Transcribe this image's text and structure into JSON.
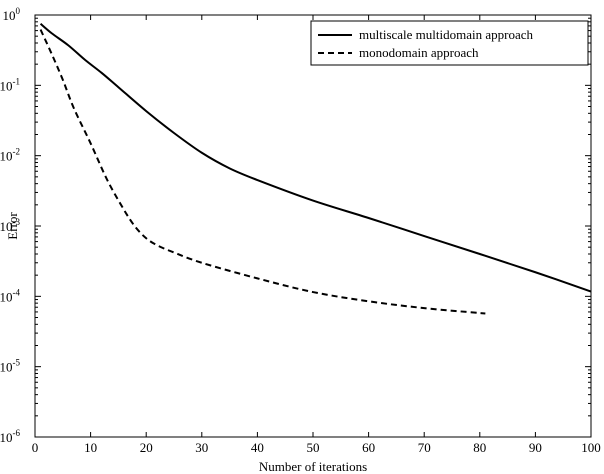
{
  "chart_data": {
    "type": "line",
    "title": "",
    "xlabel": "Number of iterations",
    "ylabel": "Error",
    "xlim": [
      0,
      100
    ],
    "ylim": [
      1e-06,
      1
    ],
    "y_scale": "log",
    "grid": false,
    "legend_position": "top-right",
    "x_ticks": [
      0,
      10,
      20,
      30,
      40,
      50,
      60,
      70,
      80,
      90,
      100
    ],
    "x_tick_labels": [
      "0",
      "10",
      "20",
      "30",
      "40",
      "50",
      "60",
      "70",
      "80",
      "90",
      "100"
    ],
    "y_ticks": [
      {
        "value": 1,
        "base": "10",
        "exp": "0"
      },
      {
        "value": 0.1,
        "base": "10",
        "exp": "-1"
      },
      {
        "value": 0.01,
        "base": "10",
        "exp": "-2"
      },
      {
        "value": 0.001,
        "base": "10",
        "exp": "-3"
      },
      {
        "value": 0.0001,
        "base": "10",
        "exp": "-4"
      },
      {
        "value": 1e-05,
        "base": "10",
        "exp": "-5"
      },
      {
        "value": 1e-06,
        "base": "10",
        "exp": "-6"
      }
    ],
    "series": [
      {
        "name": "multiscale multidomain approach",
        "style": "solid",
        "color": "#000000",
        "x": [
          1,
          3,
          6,
          9,
          12,
          15,
          20,
          25,
          30,
          35,
          40,
          50,
          60,
          70,
          80,
          90,
          100
        ],
        "y": [
          0.75,
          0.55,
          0.37,
          0.23,
          0.15,
          0.094,
          0.043,
          0.021,
          0.011,
          0.0066,
          0.0045,
          0.0023,
          0.0013,
          0.00072,
          0.0004,
          0.00022,
          0.000117
        ]
      },
      {
        "name": "monodomain approach",
        "style": "dashed",
        "color": "#000000",
        "x": [
          1,
          3,
          5,
          7,
          10,
          13,
          16,
          18,
          20,
          22,
          25,
          30,
          40,
          50,
          60,
          70,
          81
        ],
        "y": [
          0.62,
          0.28,
          0.12,
          0.047,
          0.015,
          0.0045,
          0.0017,
          0.00098,
          0.00067,
          0.00053,
          0.00042,
          0.0003,
          0.00018,
          0.000115,
          8.5e-05,
          6.8e-05,
          5.7e-05
        ]
      }
    ]
  }
}
